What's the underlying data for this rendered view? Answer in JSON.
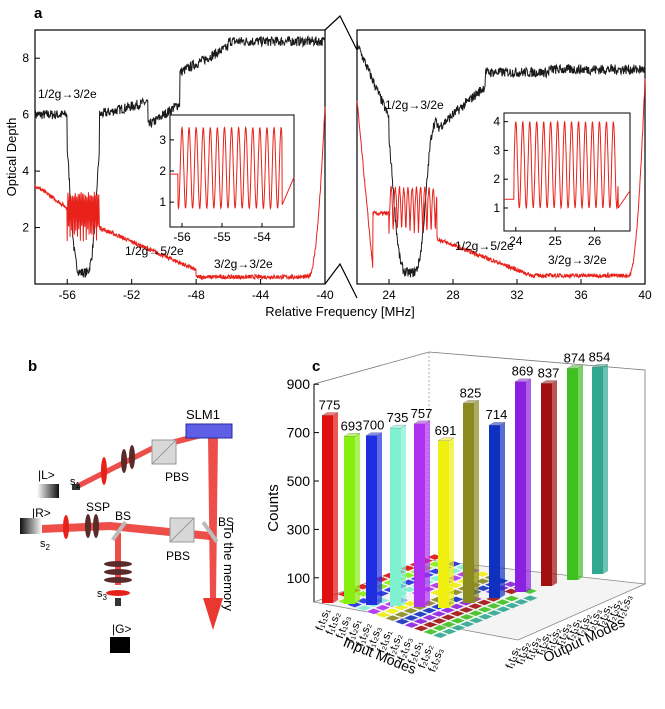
{
  "panel_a": {
    "label": "a",
    "ylabel": "Optical Depth",
    "xlabel": "Relative Frequency [MHz]",
    "yticks": [
      "2",
      "4",
      "6",
      "8"
    ],
    "left_xticks": [
      "-56",
      "-52",
      "-48",
      "-44",
      "-40"
    ],
    "right_xticks": [
      "24",
      "28",
      "32",
      "36",
      "40"
    ],
    "left_annotations": [
      "1/2g→3/2e",
      "1/2g→5/2e",
      "3/2g→3/2e"
    ],
    "right_annotations": [
      "1/2g→3/2e",
      "1/2g→5/2e",
      "3/2g→3/2e"
    ],
    "inset_left": {
      "xticks": [
        "-56",
        "-55",
        "-54"
      ],
      "yticks": [
        "1",
        "2",
        "3"
      ]
    },
    "inset_right": {
      "xticks": [
        "24",
        "25",
        "26"
      ],
      "yticks": [
        "1",
        "2",
        "3",
        "4"
      ]
    },
    "colors": {
      "black_trace": "#1a1a1a",
      "red_trace": "#e8221b"
    }
  },
  "panel_b": {
    "label": "b",
    "slm": "SLM1",
    "pbs_top": "PBS",
    "pbs_bottom": "PBS",
    "bs_left": "BS",
    "bs_right": "BS",
    "ssp": "SSP",
    "state_l": "|L>",
    "state_r": "|R>",
    "state_g": "|G>",
    "s1": "s",
    "s1_sub": "1",
    "s2": "s",
    "s2_sub": "2",
    "s3": "s",
    "s3_sub": "3",
    "memory": "To the memory",
    "beam_color": "#e8221b"
  },
  "panel_c": {
    "label": "c",
    "zlabel": "Counts",
    "zticks": [
      "100",
      "300",
      "500",
      "700",
      "900"
    ],
    "input_label": "Input Modes",
    "output_label": "Output Modes",
    "input_ticks": [
      "f₁t₁s₁",
      "f₁t₁s₂",
      "f₁t₁s₃",
      "f₁t₂s₁",
      "f₁t₂s₂",
      "f₁t₂s₃",
      "f₂t₁s₁",
      "f₂t₁s₂",
      "f₂t₁s₃",
      "f₂t₂s₁",
      "f₂t₂s₂",
      "f₂t₂s₃"
    ]
  },
  "chart_data": {
    "type": "bar",
    "title": "",
    "zlabel": "Counts",
    "categories": [
      "f1t1s1",
      "f1t1s2",
      "f1t1s3",
      "f1t2s1",
      "f1t2s2",
      "f1t2s3",
      "f2t1s1",
      "f2t1s2",
      "f2t1s3",
      "f2t2s1",
      "f2t2s2",
      "f2t2s3"
    ],
    "values": [
      775,
      693,
      700,
      735,
      757,
      691,
      825,
      714,
      869,
      837,
      874,
      854
    ],
    "colors": [
      "#e01010",
      "#88ee10",
      "#1f2ee0",
      "#7ff0d0",
      "#b030f0",
      "#f0f010",
      "#8a8a20",
      "#1030c0",
      "#8b20e0",
      "#a01010",
      "#3ec020",
      "#30a890"
    ],
    "zlim": [
      0,
      900
    ]
  }
}
